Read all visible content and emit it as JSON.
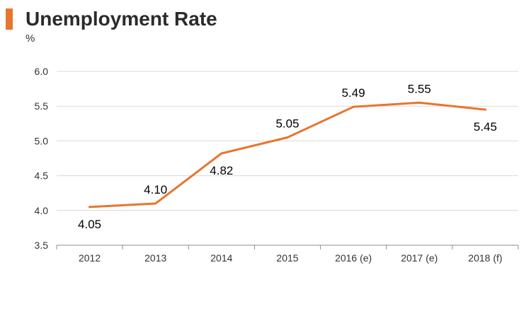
{
  "header": {
    "title": "Unemployment Rate",
    "unit": "%"
  },
  "colors": {
    "accent": "#e8752d",
    "line": "#e8752d",
    "grid": "#d9d9d9",
    "axis": "#8c8c8c"
  },
  "chart_data": {
    "type": "line",
    "title": "Unemployment Rate",
    "xlabel": "",
    "ylabel": "%",
    "categories": [
      "2012",
      "2013",
      "2014",
      "2015",
      "2016 (e)",
      "2017 (e)",
      "2018 (f)"
    ],
    "series": [
      {
        "values": [
          4.05,
          4.1,
          4.82,
          5.05,
          5.49,
          5.55,
          5.45
        ],
        "labels": [
          "4.05",
          "4.10",
          "4.82",
          "5.05",
          "5.49",
          "5.55",
          "5.45"
        ],
        "label_positions": [
          "below",
          "above",
          "below",
          "above",
          "above",
          "above",
          "below"
        ]
      }
    ],
    "ylim": [
      3.5,
      6.0
    ],
    "yticks": [
      "3.5",
      "4.0",
      "4.5",
      "5.0",
      "5.5",
      "6.0"
    ],
    "grid": true,
    "legend": "none"
  }
}
